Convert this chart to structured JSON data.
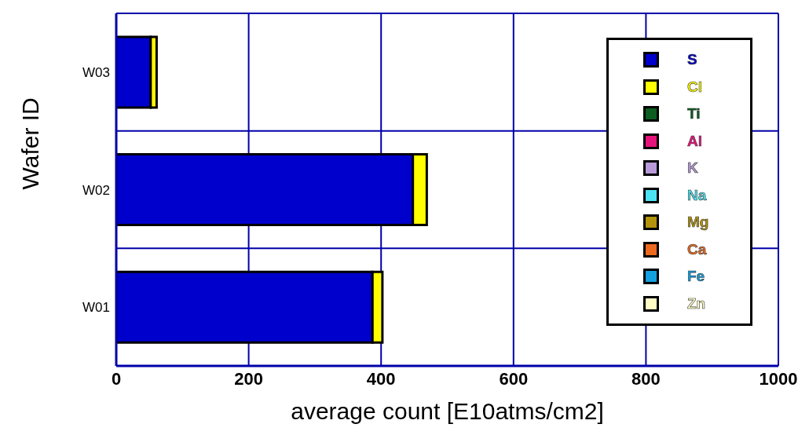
{
  "chart_data": {
    "type": "bar",
    "orientation": "horizontal",
    "stacked": true,
    "categories": [
      "W03",
      "W02",
      "W01"
    ],
    "xlabel": "average count  [E10atms/cm2]",
    "ylabel": "Wafer ID",
    "xlim": [
      0,
      1000
    ],
    "xticks": [
      0,
      200,
      400,
      600,
      800,
      1000
    ],
    "grid": true,
    "legend": "top right",
    "series": [
      {
        "name": "S",
        "color": "#0000cc",
        "values": [
          52,
          448,
          387
        ]
      },
      {
        "name": "Cl",
        "color": "#ffff00",
        "values": [
          9,
          21,
          15
        ]
      },
      {
        "name": "Ti",
        "color": "#0b5e1f",
        "values": [
          0,
          0,
          0
        ]
      },
      {
        "name": "Al",
        "color": "#e8137a",
        "values": [
          0,
          0,
          0
        ]
      },
      {
        "name": "K",
        "color": "#b99ad8",
        "values": [
          0,
          0,
          0
        ]
      },
      {
        "name": "Na",
        "color": "#4ce4f2",
        "values": [
          0,
          0,
          0
        ]
      },
      {
        "name": "Mg",
        "color": "#b3930c",
        "values": [
          0,
          0,
          0
        ]
      },
      {
        "name": "Ca",
        "color": "#ec6a1e",
        "values": [
          0,
          0,
          0
        ]
      },
      {
        "name": "Fe",
        "color": "#14a0e0",
        "values": [
          0,
          0,
          0
        ]
      },
      {
        "name": "Zn",
        "color": "#fdfdc4",
        "values": [
          0,
          0,
          0
        ]
      }
    ]
  }
}
